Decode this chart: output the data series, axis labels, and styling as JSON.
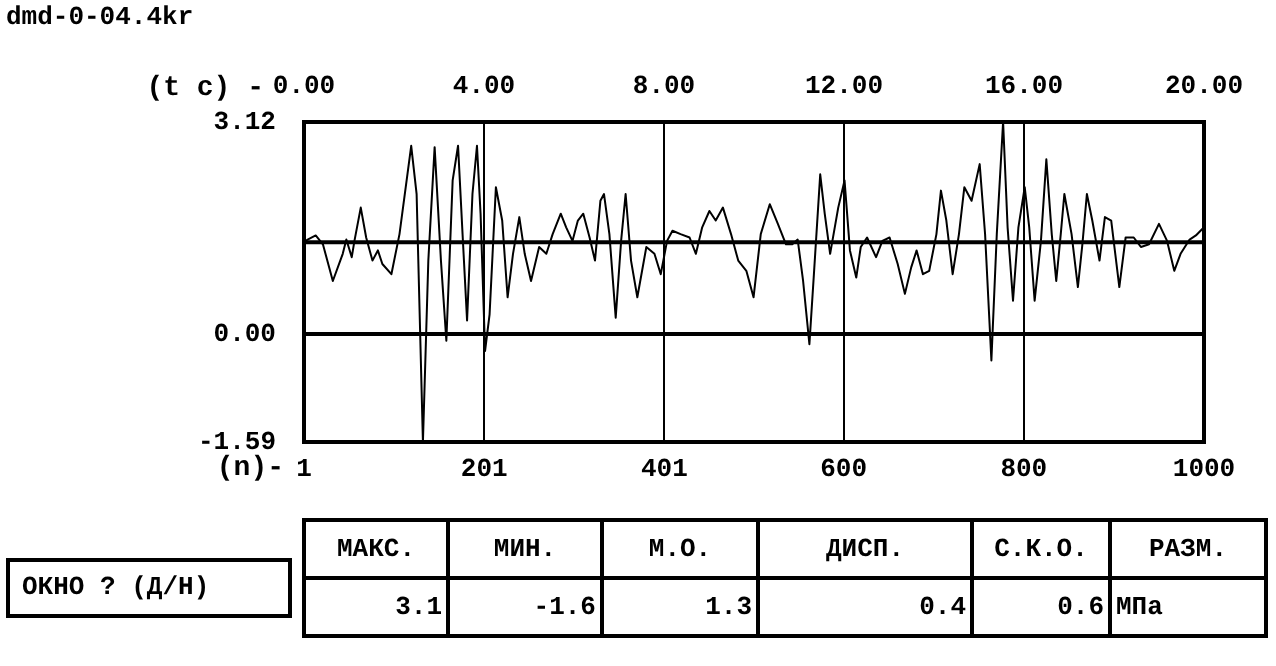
{
  "chart_data": {
    "type": "line",
    "title": "dmd-0-04.4kr",
    "xlabel": "(n)-",
    "x2label": "(t c) -",
    "xlim": [
      1,
      1000
    ],
    "xticks": [
      1,
      201,
      401,
      600,
      800,
      1000
    ],
    "x2lim": [
      0,
      20
    ],
    "x2ticks": [
      {
        "value": 0,
        "label": "0.00"
      },
      {
        "value": 4,
        "label": "4.00"
      },
      {
        "value": 8,
        "label": "8.00"
      },
      {
        "value": 12,
        "label": "12.00"
      },
      {
        "value": 16,
        "label": "16.00"
      },
      {
        "value": 20,
        "label": "20.00"
      }
    ],
    "ylim": [
      -1.59,
      3.12
    ],
    "yticks": [
      -1.59,
      {
        "value": 0,
        "label": "0.00"
      },
      3.12
    ],
    "grid": true,
    "legend": false,
    "marker": "none",
    "line_style": "solid",
    "ref_lines": [
      {
        "axis": "y",
        "value": 1.35,
        "color": "#000000"
      }
    ],
    "series": [
      {
        "color": "#000000",
        "x": [
          1,
          5,
          14,
          22,
          33,
          44,
          48,
          54,
          57,
          64,
          70,
          77,
          83,
          88,
          98,
          107,
          120,
          126,
          133,
          139,
          146,
          153,
          159,
          166,
          172,
          177,
          182,
          188,
          193,
          197,
          202,
          207,
          214,
          221,
          227,
          233,
          240,
          246,
          253,
          262,
          270,
          277,
          286,
          292,
          299,
          305,
          311,
          318,
          324,
          330,
          334,
          340,
          347,
          353,
          358,
          364,
          371,
          381,
          390,
          397,
          404,
          410,
          419,
          429,
          436,
          443,
          451,
          458,
          466,
          475,
          483,
          492,
          500,
          508,
          518,
          527,
          536,
          543,
          549,
          555,
          562,
          567,
          574,
          579,
          585,
          594,
          601,
          607,
          614,
          619,
          626,
          636,
          643,
          651,
          660,
          668,
          675,
          681,
          688,
          695,
          703,
          708,
          714,
          721,
          728,
          734,
          742,
          751,
          757,
          764,
          770,
          777,
          782,
          788,
          794,
          801,
          806,
          812,
          819,
          825,
          831,
          836,
          841,
          845,
          853,
          860,
          865,
          870,
          876,
          884,
          890,
          897,
          906,
          913,
          922,
          930,
          939,
          950,
          959,
          967,
          974,
          984,
          991,
          1000
        ],
        "values": [
          1.35,
          1.39,
          1.45,
          1.32,
          0.78,
          1.18,
          1.39,
          1.13,
          1.37,
          1.86,
          1.42,
          1.08,
          1.23,
          1.03,
          0.88,
          1.47,
          2.77,
          2.06,
          -1.59,
          1.08,
          2.75,
          1.08,
          -0.1,
          2.26,
          2.77,
          1.47,
          0.2,
          2.06,
          2.77,
          1.77,
          -0.25,
          0.29,
          2.16,
          1.67,
          0.54,
          1.18,
          1.72,
          1.18,
          0.78,
          1.28,
          1.18,
          1.47,
          1.77,
          1.57,
          1.37,
          1.67,
          1.77,
          1.42,
          1.08,
          1.96,
          2.06,
          1.47,
          0.24,
          1.37,
          2.06,
          1.08,
          0.54,
          1.28,
          1.18,
          0.88,
          1.37,
          1.52,
          1.47,
          1.42,
          1.18,
          1.57,
          1.81,
          1.67,
          1.86,
          1.47,
          1.08,
          0.93,
          0.54,
          1.47,
          1.91,
          1.62,
          1.32,
          1.32,
          1.39,
          0.78,
          -0.15,
          0.88,
          2.35,
          1.77,
          1.18,
          1.86,
          2.26,
          1.23,
          0.83,
          1.28,
          1.42,
          1.13,
          1.37,
          1.42,
          1.03,
          0.59,
          0.98,
          1.23,
          0.88,
          0.93,
          1.47,
          2.11,
          1.67,
          0.88,
          1.47,
          2.16,
          1.96,
          2.5,
          1.47,
          -0.39,
          1.47,
          3.12,
          1.57,
          0.49,
          1.57,
          2.16,
          1.57,
          0.49,
          1.37,
          2.57,
          1.47,
          0.78,
          1.47,
          2.06,
          1.47,
          0.69,
          1.32,
          2.06,
          1.67,
          1.08,
          1.72,
          1.67,
          0.69,
          1.42,
          1.42,
          1.28,
          1.32,
          1.62,
          1.37,
          0.93,
          1.18,
          1.39,
          1.45,
          1.57
        ]
      }
    ],
    "annotations": [
      "ОКНО ? (Д/Н)",
      "МАКС.",
      "МИН.",
      "М.О.",
      "ДИСП.",
      "С.К.О.",
      "РАЗМ.",
      "3.1",
      "-1.6",
      "1.3",
      "0.4",
      "0.6",
      "МПа"
    ]
  }
}
